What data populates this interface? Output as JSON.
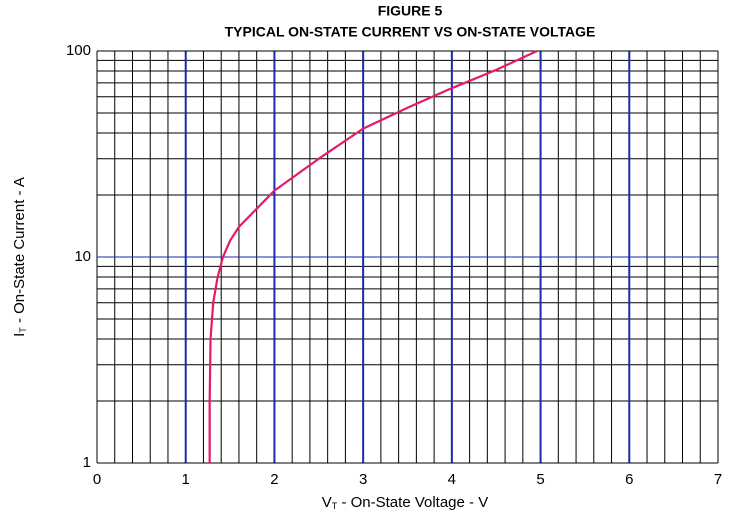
{
  "chart_data": {
    "type": "line",
    "title": "FIGURE 5",
    "subtitle": "TYPICAL ON-STATE CURRENT VS ON-STATE VOLTAGE",
    "xlabel": [
      "V",
      "T",
      " - On-State Voltage - V"
    ],
    "ylabel": [
      "I",
      "T",
      " - On-State Current - A"
    ],
    "xlim": [
      0,
      7
    ],
    "ylim": [
      1,
      100
    ],
    "log_y": true,
    "grid": true,
    "xticks": [
      0,
      1,
      2,
      3,
      4,
      5,
      6,
      7
    ],
    "yticks": [
      1,
      10,
      100
    ],
    "x_minor_ticks": [
      0.2,
      0.4,
      0.6,
      0.8,
      1.2,
      1.4,
      1.6,
      1.8,
      2.2,
      2.4,
      2.6,
      2.8,
      3.2,
      3.4,
      3.6,
      3.8,
      4.2,
      4.4,
      4.6,
      4.8,
      5.2,
      5.4,
      5.6,
      5.8,
      6.2,
      6.4,
      6.6,
      6.8
    ],
    "y_minor_ticks": [
      2,
      3,
      4,
      5,
      6,
      7,
      8,
      9,
      20,
      30,
      40,
      50,
      60,
      70,
      80,
      90
    ],
    "major_grid_color": "#1a2aa8",
    "minor_grid_color": "#000000",
    "series": [
      {
        "color": "#e8196c",
        "x": [
          1.27,
          1.27,
          1.28,
          1.31,
          1.36,
          1.42,
          1.5,
          1.6,
          2.0,
          2.5,
          3.0,
          3.5,
          4.0,
          4.5,
          4.96
        ],
        "values": [
          1,
          2,
          4,
          6,
          8,
          10,
          12,
          14,
          21,
          30,
          42,
          53,
          66,
          81,
          100
        ]
      }
    ]
  }
}
